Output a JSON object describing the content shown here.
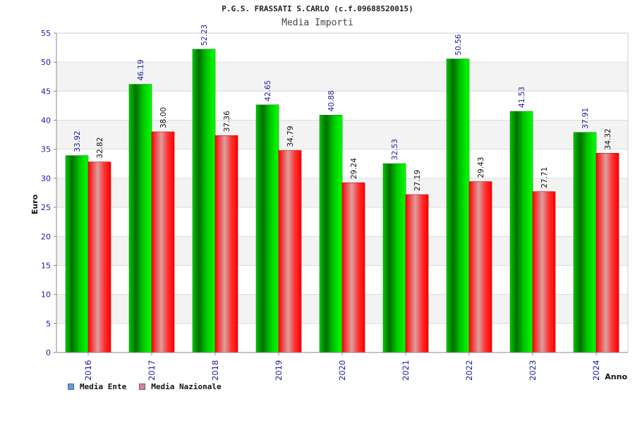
{
  "chart_data": {
    "type": "bar",
    "title": "P.G.S. FRASSATI S.CARLO (c.f.09688520015)",
    "subtitle": "Media Importi",
    "xlabel": "Anno",
    "ylabel": "Euro",
    "ylim": [
      0,
      55
    ],
    "yticks": [
      0,
      5,
      10,
      15,
      20,
      25,
      30,
      35,
      40,
      45,
      50,
      55
    ],
    "categories": [
      "2016",
      "2017",
      "2018",
      "2019",
      "2020",
      "2021",
      "2022",
      "2023",
      "2024"
    ],
    "series": [
      {
        "name": "Media Ente",
        "color": "#00b400",
        "legend_color": "#5a9ee8",
        "values": [
          33.92,
          46.19,
          52.23,
          42.65,
          40.88,
          32.53,
          50.56,
          41.53,
          37.91
        ]
      },
      {
        "name": "Media Nazionale",
        "color": "#ff0000",
        "legend_color": "#e07aa8",
        "values": [
          32.82,
          38.0,
          37.36,
          34.79,
          29.24,
          27.19,
          29.43,
          27.71,
          34.32
        ]
      }
    ],
    "value_labels": [
      [
        "33.92",
        "46.19",
        "52.23",
        "42.65",
        "40.88",
        "32.53",
        "50.56",
        "41.53",
        "37.91"
      ],
      [
        "32.82",
        "38.00",
        "37.36",
        "34.79",
        "29.24",
        "27.19",
        "29.43",
        "27.71",
        "34.32"
      ]
    ],
    "grid": true,
    "legend": "bottom-left"
  }
}
